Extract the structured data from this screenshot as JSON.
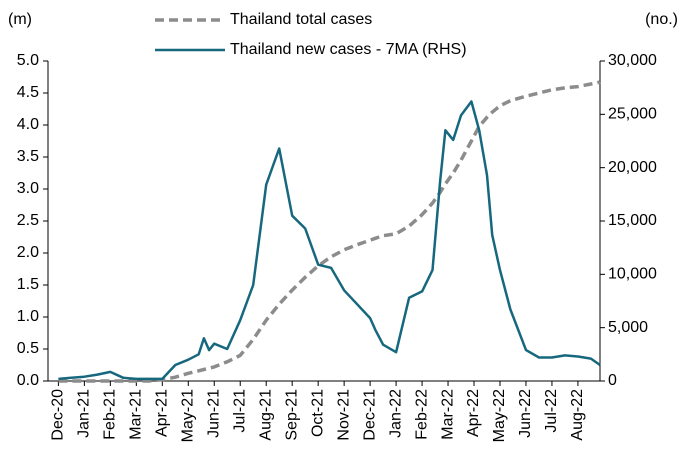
{
  "chart_data": {
    "type": "line",
    "y_label": "(m)",
    "y2_label": "(no.)",
    "x": [
      0,
      0.5,
      1,
      1.5,
      2,
      2.5,
      3,
      3.5,
      4,
      4.5,
      5,
      5.4,
      5.6,
      5.8,
      6,
      6.5,
      7,
      7.5,
      8,
      8.5,
      9,
      9.5,
      10,
      10.5,
      11,
      11.5,
      12,
      12.2,
      12.5,
      13,
      13.5,
      14,
      14.4,
      14.7,
      14.9,
      15.2,
      15.5,
      15.9,
      16.2,
      16.5,
      16.7,
      17,
      17.4,
      18,
      18.5,
      19,
      19.5,
      20,
      20.5,
      20.85
    ],
    "xlim": [
      -0.4,
      20.85
    ],
    "xticks": [
      {
        "value": 0,
        "label": "Dec-20"
      },
      {
        "value": 1,
        "label": "Jan-21"
      },
      {
        "value": 2,
        "label": "Feb-21"
      },
      {
        "value": 3,
        "label": "Mar-21"
      },
      {
        "value": 4,
        "label": "Apr-21"
      },
      {
        "value": 5,
        "label": "May-21"
      },
      {
        "value": 6,
        "label": "Jun-21"
      },
      {
        "value": 7,
        "label": "Jul-21"
      },
      {
        "value": 8,
        "label": "Aug-21"
      },
      {
        "value": 9,
        "label": "Sep-21"
      },
      {
        "value": 10,
        "label": "Oct-21"
      },
      {
        "value": 11,
        "label": "Nov-21"
      },
      {
        "value": 12,
        "label": "Dec-21"
      },
      {
        "value": 13,
        "label": "Jan-22"
      },
      {
        "value": 14,
        "label": "Feb-22"
      },
      {
        "value": 15,
        "label": "Mar-22"
      },
      {
        "value": 16,
        "label": "Apr-22"
      },
      {
        "value": 17,
        "label": "May-22"
      },
      {
        "value": 18,
        "label": "Jun-22"
      },
      {
        "value": 19,
        "label": "Jul-22"
      },
      {
        "value": 20,
        "label": "Aug-22"
      }
    ],
    "ylim": [
      0,
      5
    ],
    "yticks": [
      {
        "value": 0,
        "label": "0.0"
      },
      0.5,
      {
        "value": 1,
        "label": "1.0"
      },
      1.5,
      {
        "value": 2,
        "label": "2.0"
      },
      2.5,
      {
        "value": 3,
        "label": "3.0"
      },
      3.5,
      {
        "value": 4,
        "label": "4.0"
      },
      4.5,
      {
        "value": 5,
        "label": "5.0"
      }
    ],
    "y2lim": [
      0,
      30000
    ],
    "y2ticks": [
      0,
      {
        "value": 5000,
        "label": "5,000"
      },
      {
        "value": 10000,
        "label": "10,000"
      },
      {
        "value": 15000,
        "label": "15,000"
      },
      {
        "value": 20000,
        "label": "20,000"
      },
      {
        "value": 25000,
        "label": "25,000"
      },
      {
        "value": 30000,
        "label": "30,000"
      }
    ],
    "series": [
      {
        "name": "Thailand total cases",
        "color": "#8c8c8c",
        "dashed": true,
        "values": [
          0,
          0,
          0,
          0,
          0,
          0,
          0,
          0,
          0.02,
          0.06,
          0.12,
          0.16,
          0.18,
          0.2,
          0.22,
          0.3,
          0.4,
          0.65,
          0.95,
          1.2,
          1.42,
          1.62,
          1.8,
          1.94,
          2.05,
          2.13,
          2.2,
          2.23,
          2.27,
          2.3,
          2.42,
          2.6,
          2.78,
          2.95,
          3.08,
          3.25,
          3.45,
          3.75,
          3.98,
          4.12,
          4.2,
          4.3,
          4.38,
          4.45,
          4.5,
          4.55,
          4.58,
          4.6,
          4.64,
          4.67
        ]
      },
      {
        "name": "Thailand new cases - 7MA (RHS)",
        "color": "#17687e",
        "axis": "y2",
        "values": [
          200,
          300,
          400,
          600,
          850,
          300,
          200,
          200,
          200,
          1500,
          2000,
          2500,
          4000,
          2900,
          3500,
          3000,
          5700,
          9000,
          18400,
          21800,
          15500,
          14300,
          10900,
          10600,
          8500,
          7200,
          5900,
          4800,
          3400,
          2700,
          7800,
          8400,
          10400,
          18800,
          23500,
          22600,
          24900,
          26200,
          23500,
          19300,
          13700,
          10400,
          6700,
          2900,
          2200,
          2200,
          2400,
          2300,
          2100,
          1500
        ]
      }
    ]
  }
}
